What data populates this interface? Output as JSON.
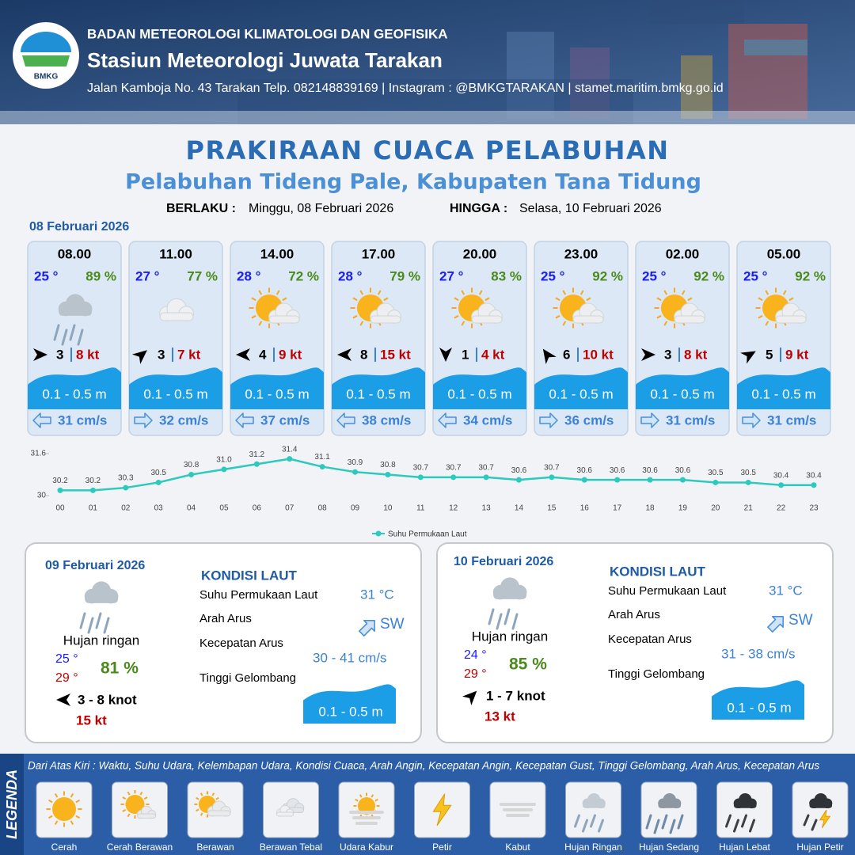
{
  "header": {
    "logo": "BMKG",
    "agency": "BADAN METEOROLOGI KLIMATOLOGI DAN GEOFISIKA",
    "station": "Stasiun Meteorologi Juwata Tarakan",
    "contact": "Jalan Kamboja No. 43 Tarakan  Telp. 082148839169 | Instagram : @BMKGTARAKAN | stamet.maritim.bmkg.go.id"
  },
  "title": "PRAKIRAAN CUACA PELABUHAN",
  "subtitle": "Pelabuhan Tideng Pale, Kabupaten Tana Tidung",
  "validity": {
    "from_label": "BERLAKU :",
    "from": "Minggu, 08 Februari 2026",
    "until_label": "HINGGA :",
    "until": "Selasa, 10 Februari 2026"
  },
  "today": {
    "date": "08 Februari 2026",
    "forecasts": [
      {
        "time": "08.00",
        "temperature": "25 °",
        "humidity": "89 %",
        "wind": "3",
        "gust": "8 kt",
        "wave": "0.1 - 0.5 m",
        "current": "31 cm/s"
      },
      {
        "time": "11.00",
        "temperature": "27 °",
        "humidity": "77 %",
        "wind": "3",
        "gust": "7 kt",
        "wave": "0.1 - 0.5 m",
        "current": "32 cm/s"
      },
      {
        "time": "14.00",
        "temperature": "28 °",
        "humidity": "72 %",
        "wind": "4",
        "gust": "9 kt",
        "wave": "0.1 - 0.5 m",
        "current": "37 cm/s"
      },
      {
        "time": "17.00",
        "temperature": "28 °",
        "humidity": "79 %",
        "wind": "8",
        "gust": "15 kt",
        "wave": "0.1 - 0.5 m",
        "current": "38 cm/s"
      },
      {
        "time": "20.00",
        "temperature": "27 °",
        "humidity": "83 %",
        "wind": "1",
        "gust": "4 kt",
        "wave": "0.1 - 0.5 m",
        "current": "34 cm/s"
      },
      {
        "time": "23.00",
        "temperature": "25 °",
        "humidity": "92 %",
        "wind": "6",
        "gust": "10 kt",
        "wave": "0.1 - 0.5 m",
        "current": "36 cm/s"
      },
      {
        "time": "02.00",
        "temperature": "25 °",
        "humidity": "92 %",
        "wind": "3",
        "gust": "8 kt",
        "wave": "0.1 - 0.5 m",
        "current": "31 cm/s"
      },
      {
        "time": "05.00",
        "temperature": "25 °",
        "humidity": "92 %",
        "wind": "5",
        "gust": "9 kt",
        "wave": "0.1 - 0.5 m",
        "current": "31 cm/s"
      }
    ]
  },
  "chart_data": {
    "type": "line",
    "categories": [
      "00",
      "01",
      "02",
      "03",
      "04",
      "05",
      "06",
      "07",
      "08",
      "09",
      "10",
      "11",
      "12",
      "13",
      "14",
      "15",
      "16",
      "17",
      "18",
      "19",
      "20",
      "21",
      "22",
      "23"
    ],
    "series": [
      {
        "name": "Suhu Permukaan Laut",
        "color": "#2cc9bd",
        "values": [
          30.2,
          30.2,
          30.3,
          30.5,
          30.8,
          31.0,
          31.2,
          31.4,
          31.1,
          30.9,
          30.8,
          30.7,
          30.7,
          30.7,
          30.6,
          30.7,
          30.6,
          30.6,
          30.6,
          30.6,
          30.5,
          30.5,
          30.4,
          30.4
        ],
        "value_labels": [
          "30.2",
          "30.2",
          "30.3",
          "30.5",
          "30.8",
          "31.0",
          "31.2",
          "31.4",
          "31.1",
          "30.9",
          "30.8",
          "30.7",
          "30.7",
          "30.7",
          "30.6",
          "30.7",
          "30.6",
          "30.6",
          "30.6",
          "30.6",
          "30.5",
          "30.5",
          "30.4",
          "30.4"
        ]
      }
    ],
    "ylim": [
      30,
      31.6
    ],
    "yticks": [
      30,
      31.6
    ],
    "legend": "bottom"
  },
  "days": [
    {
      "date": "09 Februari 2026",
      "weather": "Hujan ringan",
      "temp_min": "25 °",
      "temp_max": "29 °",
      "humidity": "81 %",
      "wind": "3 - 8 knot",
      "gust": "15 kt",
      "sea_title": "KONDISI LAUT",
      "labels": [
        "Suhu Permukaan Laut",
        "Arah Arus",
        "Kecepatan Arus",
        "Tinggi Gelombang"
      ],
      "sst": "31 °C",
      "current_direction": "SW",
      "current_speed": "30 - 41 cm/s",
      "wave": "0.1 - 0.5 m"
    },
    {
      "date": "10 Februari 2026",
      "weather": "Hujan ringan",
      "temp_min": "24 °",
      "temp_max": "29 °",
      "humidity": "85 %",
      "wind": "1 - 7 knot",
      "gust": "13 kt",
      "sea_title": "KONDISI LAUT",
      "labels": [
        "Suhu Permukaan Laut",
        "Arah Arus",
        "Kecepatan Arus",
        "Tinggi Gelombang"
      ],
      "sst": "31 °C",
      "current_direction": "SW",
      "current_speed": "31 - 38 cm/s",
      "wave": "0.1 - 0.5 m"
    }
  ],
  "legend": {
    "title": "LEGENDA",
    "description": "Dari Atas Kiri : Waktu, Suhu Udara, Kelembapan Udara, Kondisi Cuaca, Arah Angin, Kecepatan Angin, Kecepatan Gust, Tinggi Gelombang, Arah Arus, Kecepatan Arus",
    "items": [
      "Cerah",
      "Cerah Berawan",
      "Berawan",
      "Berawan Tebal",
      "Udara Kabur",
      "Petir",
      "Kabut",
      "Hujan Ringan",
      "Hujan Sedang",
      "Hujan Lebat",
      "Hujan Petir"
    ]
  }
}
